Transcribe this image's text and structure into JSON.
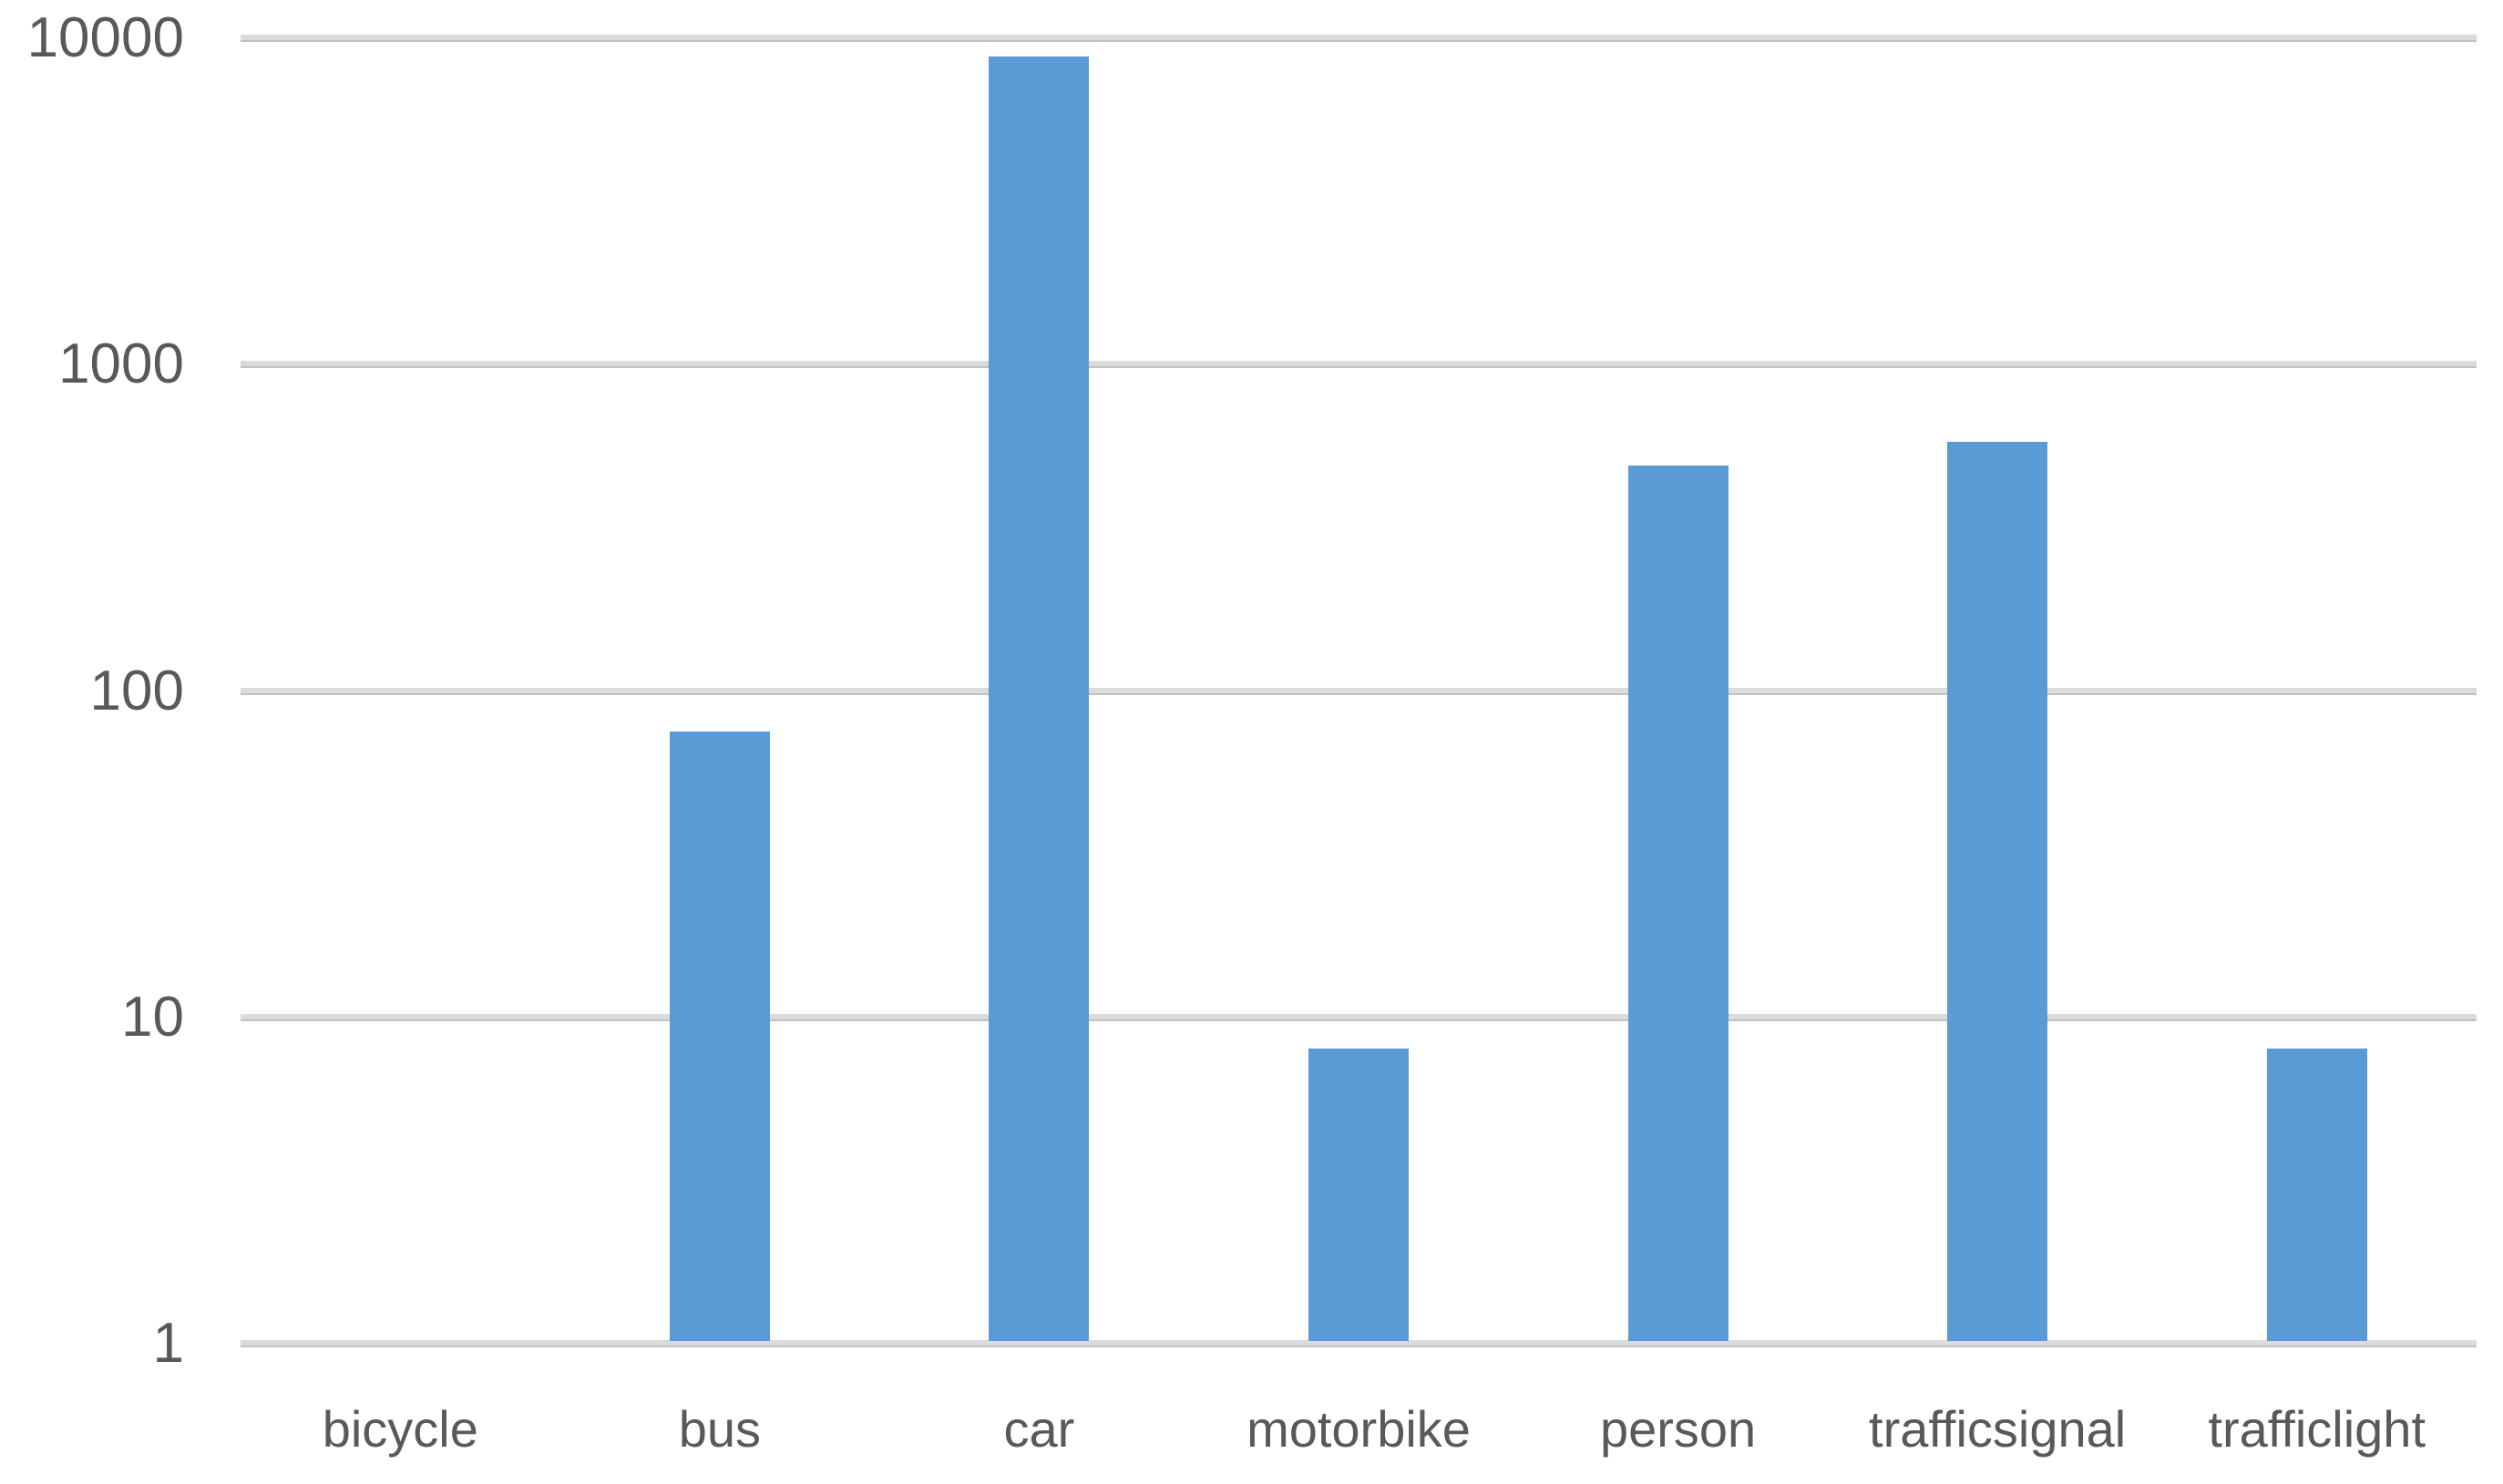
{
  "chart_data": {
    "type": "bar",
    "title": "",
    "xlabel": "",
    "ylabel": "",
    "categories": [
      "bicycle",
      "bus",
      "car",
      "motorbike",
      "person",
      "trafficsignal",
      "trafficlight"
    ],
    "values": [
      0,
      75,
      8800,
      8,
      490,
      580,
      8
    ],
    "y_ticks": [
      1,
      10,
      100,
      1000,
      10000
    ],
    "y_tick_labels": [
      "1",
      "10",
      "100",
      "1000",
      "10000"
    ],
    "y_scale": "log10",
    "ylim": [
      1,
      10000
    ],
    "grid": true,
    "legend": false,
    "bar_color": "#5b9bd5",
    "gridline_color": "#dadbdd",
    "axis_label_color": "#595959"
  }
}
